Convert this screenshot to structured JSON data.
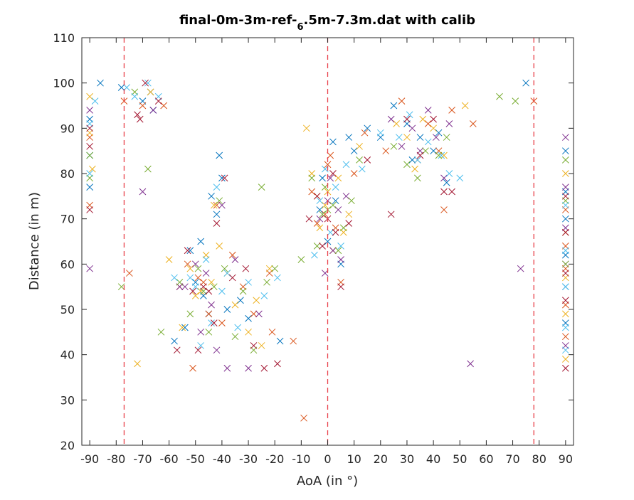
{
  "chart_data": {
    "type": "scatter",
    "title_parts": {
      "before": "final-0m-3m-ref-",
      "subscript": "6",
      "after": ".5m-7.3m.dat with calib"
    },
    "xlabel": "AoA (in °)",
    "ylabel": "Distance (in m)",
    "xlim": [
      -93,
      93
    ],
    "ylim": [
      20,
      110
    ],
    "xticks": [
      -90,
      -80,
      -70,
      -60,
      -50,
      -40,
      -30,
      -20,
      -10,
      0,
      10,
      20,
      30,
      40,
      50,
      60,
      70,
      80,
      90
    ],
    "yticks": [
      20,
      30,
      40,
      50,
      60,
      70,
      80,
      90,
      100,
      110
    ],
    "grid": false,
    "legend": "none",
    "marker": "x",
    "colors": [
      "#0072bd",
      "#d95319",
      "#edb120",
      "#7e2f8e",
      "#77ac30",
      "#4dbeee",
      "#a2142f"
    ],
    "reference_lines_x": [
      -77,
      0,
      78
    ],
    "reference_line_color": "#e8414a",
    "series": [
      {
        "color_index": 0,
        "x": [
          -90,
          -90,
          -90,
          -86,
          -78,
          -70,
          -67,
          -66,
          -58,
          -54,
          -52,
          -50,
          -48,
          -47,
          -45,
          -44,
          -42,
          -41,
          -40,
          -38,
          -33,
          -30,
          -18,
          -3,
          -2,
          0,
          2,
          3,
          5,
          8,
          10,
          15,
          20,
          25,
          30,
          32,
          35,
          40,
          42,
          45,
          75,
          90,
          90,
          90,
          90,
          90,
          90
        ],
        "y": [
          92,
          84,
          77,
          100,
          99,
          96,
          98,
          94,
          43,
          46,
          63,
          56,
          65,
          53,
          49,
          75,
          71,
          84,
          79,
          50,
          52,
          48,
          43,
          72,
          79,
          65,
          87,
          74,
          60,
          88,
          85,
          90,
          88,
          95,
          91,
          83,
          88,
          85,
          89,
          78,
          100,
          85,
          76,
          70,
          62,
          55,
          47
        ]
      },
      {
        "color_index": 1,
        "x": [
          -90,
          -90,
          -77,
          -75,
          -70,
          -62,
          -56,
          -53,
          -51,
          -49,
          -47,
          -45,
          -42,
          -40,
          -36,
          -32,
          -28,
          -22,
          -21,
          -13,
          -9,
          -6,
          -4,
          -1,
          0,
          1,
          3,
          5,
          10,
          14,
          22,
          28,
          34,
          38,
          42,
          44,
          47,
          55,
          78,
          90,
          90,
          90,
          90,
          90
        ],
        "y": [
          88,
          73,
          96,
          58,
          95,
          95,
          55,
          60,
          37,
          57,
          56,
          49,
          73,
          47,
          62,
          55,
          49,
          58,
          45,
          43,
          26,
          76,
          69,
          71,
          82,
          84,
          68,
          56,
          80,
          89,
          85,
          96,
          83,
          91,
          85,
          72,
          94,
          91,
          96,
          72,
          64,
          59,
          51,
          44
        ]
      },
      {
        "color_index": 2,
        "x": [
          -90,
          -90,
          -89,
          -72,
          -67,
          -60,
          -55,
          -52,
          -50,
          -48,
          -46,
          -44,
          -43,
          -41,
          -38,
          -35,
          -30,
          -27,
          -25,
          -22,
          -8,
          -6,
          -4,
          -3,
          -1,
          0,
          2,
          4,
          6,
          8,
          12,
          26,
          30,
          33,
          36,
          40,
          44,
          52,
          90,
          90,
          90,
          90,
          90
        ],
        "y": [
          97,
          89,
          81,
          38,
          98,
          61,
          46,
          59,
          53,
          54,
          62,
          56,
          73,
          64,
          58,
          51,
          45,
          52,
          42,
          59,
          90,
          80,
          75,
          68,
          73,
          76,
          63,
          79,
          67,
          71,
          86,
          91,
          88,
          81,
          92,
          90,
          84,
          95,
          80,
          67,
          57,
          49,
          39
        ]
      },
      {
        "color_index": 3,
        "x": [
          -90,
          -90,
          -70,
          -66,
          -56,
          -54,
          -50,
          -48,
          -46,
          -44,
          -42,
          -40,
          -38,
          -35,
          -30,
          -26,
          -3,
          -1,
          0,
          1,
          2,
          4,
          5,
          7,
          24,
          28,
          32,
          35,
          38,
          41,
          44,
          46,
          54,
          73,
          90,
          90,
          90,
          90,
          90
        ],
        "y": [
          94,
          59,
          76,
          94,
          55,
          55,
          60,
          45,
          58,
          51,
          41,
          73,
          37,
          61,
          37,
          49,
          70,
          58,
          74,
          79,
          63,
          72,
          61,
          75,
          92,
          86,
          90,
          85,
          94,
          88,
          79,
          91,
          38,
          59,
          88,
          77,
          68,
          60,
          42
        ]
      },
      {
        "color_index": 4,
        "x": [
          -90,
          -90,
          -78,
          -73,
          -68,
          -63,
          -56,
          -52,
          -49,
          -47,
          -45,
          -43,
          -41,
          -39,
          -35,
          -32,
          -28,
          -25,
          -23,
          -20,
          -10,
          -6,
          -4,
          -2,
          -1,
          0,
          2,
          4,
          6,
          9,
          12,
          25,
          30,
          34,
          37,
          42,
          45,
          65,
          71,
          90,
          90,
          90
        ],
        "y": [
          84,
          79,
          55,
          98,
          81,
          45,
          56,
          49,
          59,
          54,
          45,
          55,
          74,
          59,
          44,
          54,
          41,
          77,
          56,
          59,
          61,
          79,
          64,
          71,
          77,
          72,
          73,
          63,
          68,
          74,
          83,
          86,
          82,
          79,
          85,
          84,
          88,
          97,
          96,
          83,
          74,
          60
        ]
      },
      {
        "color_index": 5,
        "x": [
          -90,
          -90,
          -88,
          -76,
          -73,
          -68,
          -64,
          -58,
          -52,
          -50,
          -48,
          -46,
          -44,
          -42,
          -40,
          -38,
          -34,
          -30,
          -24,
          -19,
          -5,
          -3,
          -1,
          1,
          3,
          5,
          7,
          13,
          20,
          27,
          31,
          34,
          38,
          43,
          46,
          50,
          90,
          90,
          90,
          90,
          90
        ],
        "y": [
          91,
          80,
          96,
          99,
          97,
          100,
          97,
          57,
          57,
          55,
          42,
          61,
          47,
          77,
          54,
          58,
          46,
          56,
          53,
          57,
          62,
          74,
          81,
          67,
          77,
          64,
          82,
          81,
          89,
          88,
          93,
          83,
          87,
          84,
          80,
          79,
          73,
          63,
          55,
          46,
          41
        ]
      },
      {
        "color_index": 6,
        "x": [
          -90,
          -90,
          -90,
          -72,
          -71,
          -69,
          -64,
          -57,
          -53,
          -51,
          -49,
          -47,
          -45,
          -43,
          -42,
          -39,
          -36,
          -31,
          -28,
          -24,
          -19,
          -7,
          -4,
          -2,
          0,
          2,
          3,
          5,
          8,
          15,
          24,
          30,
          35,
          40,
          44,
          47,
          90,
          90,
          90,
          90,
          90
        ],
        "y": [
          90,
          86,
          72,
          93,
          92,
          100,
          96,
          41,
          63,
          54,
          41,
          55,
          54,
          47,
          69,
          79,
          57,
          59,
          42,
          37,
          38,
          70,
          75,
          64,
          70,
          80,
          67,
          55,
          69,
          83,
          71,
          92,
          84,
          92,
          76,
          76,
          75,
          67,
          58,
          52,
          37
        ]
      }
    ]
  }
}
